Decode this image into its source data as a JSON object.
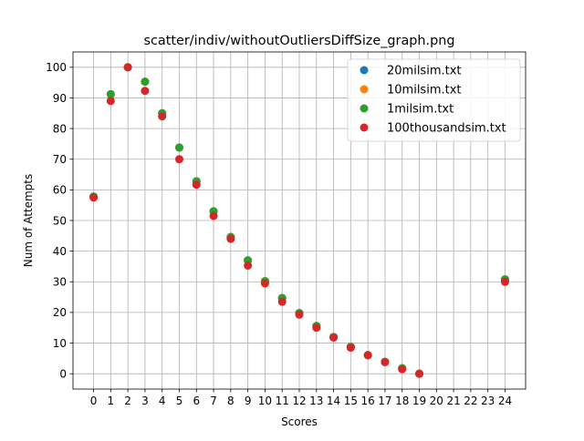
{
  "chart_data": {
    "type": "scatter",
    "title": "scatter/indiv/withoutOutliersDiffSize_graph.png",
    "xlabel": "Scores",
    "ylabel": "Num of Attempts",
    "xlim": [
      -1.2,
      25.2
    ],
    "ylim": [
      -5,
      105
    ],
    "xticks": [
      0,
      1,
      2,
      3,
      4,
      5,
      6,
      7,
      8,
      9,
      10,
      11,
      12,
      13,
      14,
      15,
      16,
      17,
      18,
      19,
      20,
      21,
      22,
      23,
      24
    ],
    "yticks": [
      0,
      10,
      20,
      30,
      40,
      50,
      60,
      70,
      80,
      90,
      100
    ],
    "grid": true,
    "legend_position": "top-right",
    "series": [
      {
        "name": "20milsim.txt",
        "color": "#1f77b4",
        "points": [
          [
            0,
            57.8
          ],
          [
            1,
            91.2
          ],
          [
            2,
            100
          ],
          [
            3,
            95.3
          ],
          [
            4,
            85
          ],
          [
            5,
            73.8
          ],
          [
            6,
            62.8
          ],
          [
            7,
            53
          ],
          [
            8,
            44.6
          ],
          [
            9,
            37
          ],
          [
            10,
            30.2
          ],
          [
            11,
            24.7
          ],
          [
            12,
            19.8
          ],
          [
            13,
            15.6
          ],
          [
            14,
            12
          ],
          [
            15,
            8.8
          ],
          [
            16,
            6.1
          ],
          [
            17,
            3.9
          ],
          [
            18,
            1.8
          ],
          [
            19,
            0
          ],
          [
            24,
            30.8
          ]
        ]
      },
      {
        "name": "10milsim.txt",
        "color": "#ff7f0e",
        "points": [
          [
            0,
            57.8
          ],
          [
            1,
            91.2
          ],
          [
            2,
            100
          ],
          [
            3,
            95.3
          ],
          [
            4,
            85
          ],
          [
            5,
            73.8
          ],
          [
            6,
            62.8
          ],
          [
            7,
            53
          ],
          [
            8,
            44.6
          ],
          [
            9,
            37
          ],
          [
            10,
            30.2
          ],
          [
            11,
            24.7
          ],
          [
            12,
            19.8
          ],
          [
            13,
            15.6
          ],
          [
            14,
            12
          ],
          [
            15,
            8.8
          ],
          [
            16,
            6.1
          ],
          [
            17,
            3.9
          ],
          [
            18,
            1.8
          ],
          [
            19,
            0
          ],
          [
            24,
            30.8
          ]
        ]
      },
      {
        "name": "1milsim.txt",
        "color": "#2ca02c",
        "points": [
          [
            0,
            57.8
          ],
          [
            1,
            91.2
          ],
          [
            2,
            100
          ],
          [
            3,
            95.3
          ],
          [
            4,
            85
          ],
          [
            5,
            73.8
          ],
          [
            6,
            62.8
          ],
          [
            7,
            53
          ],
          [
            8,
            44.6
          ],
          [
            9,
            37
          ],
          [
            10,
            30.2
          ],
          [
            11,
            24.7
          ],
          [
            12,
            19.8
          ],
          [
            13,
            15.6
          ],
          [
            14,
            12
          ],
          [
            15,
            8.8
          ],
          [
            16,
            6.1
          ],
          [
            17,
            3.9
          ],
          [
            18,
            1.8
          ],
          [
            19,
            0
          ],
          [
            24,
            30.8
          ]
        ]
      },
      {
        "name": "100thousandsim.txt",
        "color": "#d62728",
        "points": [
          [
            0,
            57.5
          ],
          [
            1,
            89
          ],
          [
            2,
            100
          ],
          [
            3,
            92.3
          ],
          [
            4,
            84
          ],
          [
            5,
            70
          ],
          [
            6,
            61.7
          ],
          [
            7,
            51.5
          ],
          [
            8,
            44
          ],
          [
            9,
            35.3
          ],
          [
            10,
            29.5
          ],
          [
            11,
            23.5
          ],
          [
            12,
            19.3
          ],
          [
            13,
            15
          ],
          [
            14,
            11.8
          ],
          [
            15,
            8.5
          ],
          [
            16,
            6
          ],
          [
            17,
            3.8
          ],
          [
            18,
            1.5
          ],
          [
            19,
            0
          ],
          [
            24,
            30
          ]
        ]
      }
    ]
  }
}
